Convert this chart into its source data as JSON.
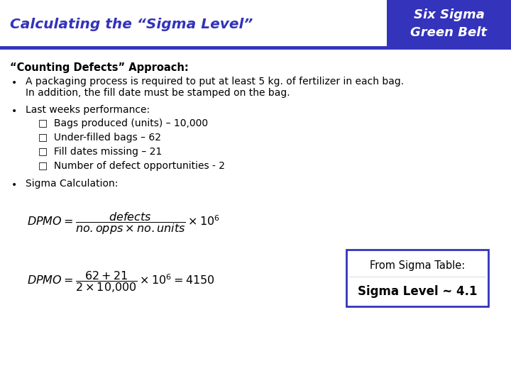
{
  "title": "Calculating the “Sigma Level”",
  "header_bg_color": "#3333BB",
  "header_text": "Six Sigma\nGreen Belt",
  "header_text_color": "#FFFFFF",
  "title_color": "#3333BB",
  "slide_bg": "#FFFFFF",
  "divider_color": "#3333BB",
  "body_text_color": "#000000",
  "section_heading": "“Counting Defects” Approach:",
  "bullet1_line1": "A packaging process is required to put at least 5 kg. of fertilizer in each bag.",
  "bullet1_line2": "In addition, the fill date must be stamped on the bag.",
  "bullet2": "Last weeks performance:",
  "sub_bullets": [
    "□  Bags produced (units) – 10,000",
    "□  Under-filled bags – 62",
    "□  Fill dates missing – 21",
    "□  Number of defect opportunities - 2"
  ],
  "bullet3": "Sigma Calculation:",
  "box_label": "From Sigma Table:",
  "box_result": "Sigma Level ~ 4.1",
  "box_border_color": "#3333BB",
  "box_bg_color": "#FFFFFF",
  "formula1": "$DPMO = \\dfrac{\\mathit{defects}}{\\mathit{no.opps} \\times \\mathit{no.units}} \\times 10^6$",
  "formula2": "$DPMO = \\dfrac{62+21}{2 \\times 10{,}000} \\times 10^6 = 4150$"
}
